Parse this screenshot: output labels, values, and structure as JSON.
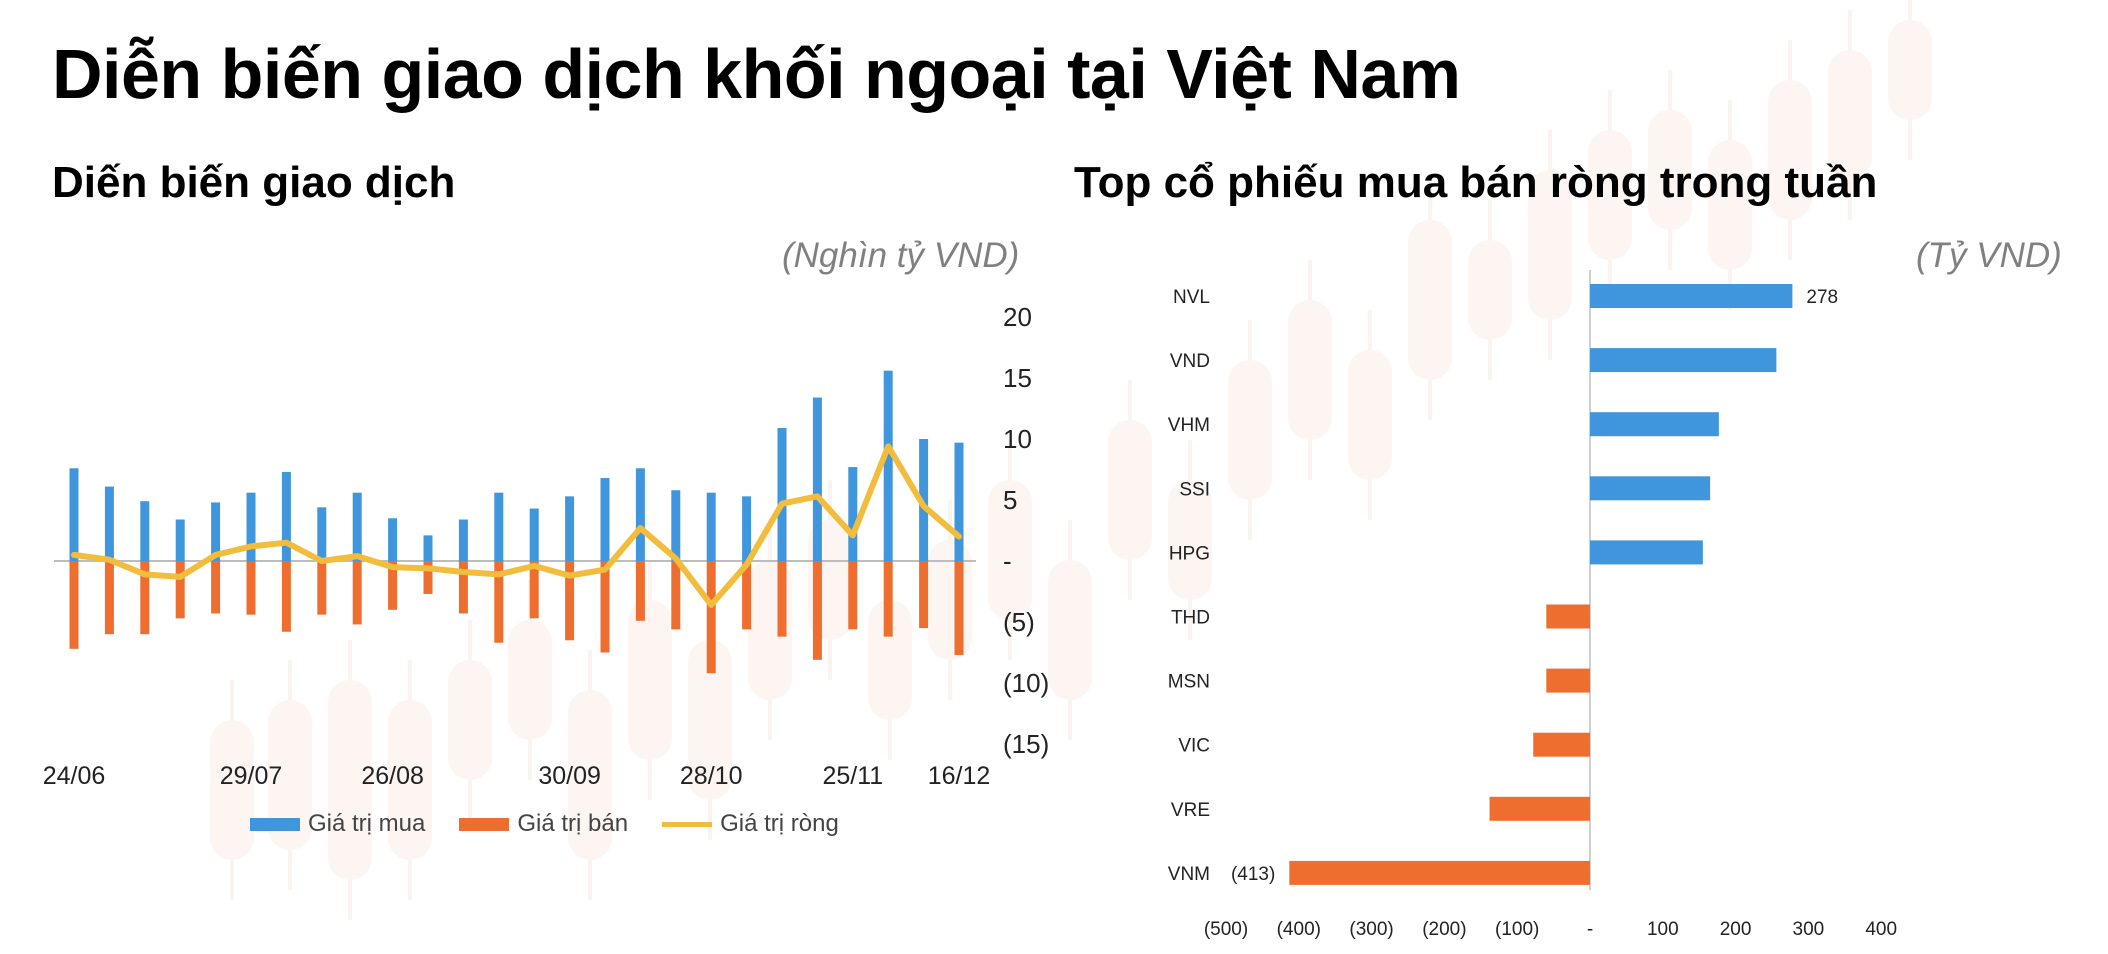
{
  "page": {
    "title": "Diễn biến giao dịch khối ngoại tại Việt Nam"
  },
  "left_panel": {
    "subtitle": "Diến biến giao dịch",
    "unit": "(Nghìn tỷ VND)"
  },
  "right_panel": {
    "subtitle": "Top cổ phiếu mua bán ròng trong tuần",
    "unit": "(Tỷ VND)"
  },
  "colors": {
    "buy": "#3f96dc",
    "sell": "#ee6e2f",
    "net": "#f2bd3d",
    "zero_line": "#bdbdbd",
    "axis_text": "#222222"
  },
  "chart_data": [
    {
      "type": "bar",
      "title": "Diến biến giao dịch",
      "ylabel": "(Nghìn tỷ VND)",
      "ylim": [
        -15,
        20
      ],
      "y_ticks": [
        20,
        15,
        10,
        5,
        0,
        -5,
        -10,
        -15
      ],
      "y_tick_labels": [
        "20",
        "15",
        "10",
        "5",
        "-",
        "(5)",
        "(10)",
        "(15)"
      ],
      "x_tick_labels": [
        {
          "index": 0,
          "label": "24/06"
        },
        {
          "index": 5,
          "label": "29/07"
        },
        {
          "index": 9,
          "label": "26/08"
        },
        {
          "index": 14,
          "label": "30/09"
        },
        {
          "index": 18,
          "label": "28/10"
        },
        {
          "index": 22,
          "label": "25/11"
        },
        {
          "index": 25,
          "label": "16/12"
        }
      ],
      "legend_position": "bottom",
      "grid": false,
      "series": [
        {
          "name": "Giá trị mua",
          "type": "bar",
          "values": [
            7.6,
            6.1,
            4.9,
            3.4,
            4.8,
            5.6,
            7.3,
            4.4,
            5.6,
            3.5,
            2.1,
            3.4,
            5.6,
            4.3,
            5.3,
            6.8,
            7.6,
            5.8,
            5.6,
            5.3,
            10.9,
            13.4,
            7.7,
            15.6,
            10.0,
            9.7
          ]
        },
        {
          "name": "Giá trị bán",
          "type": "bar",
          "values": [
            -7.2,
            -6.0,
            -6.0,
            -4.7,
            -4.3,
            -4.4,
            -5.8,
            -4.4,
            -5.2,
            -4.0,
            -2.7,
            -4.3,
            -6.7,
            -4.7,
            -6.5,
            -7.5,
            -4.9,
            -5.6,
            -9.2,
            -5.6,
            -6.2,
            -8.1,
            -5.6,
            -6.2,
            -5.5,
            -7.7
          ]
        },
        {
          "name": "Giá trị ròng",
          "type": "line",
          "values": [
            0.5,
            0.1,
            -1.1,
            -1.3,
            0.5,
            1.2,
            1.5,
            0.0,
            0.4,
            -0.5,
            -0.6,
            -0.9,
            -1.1,
            -0.4,
            -1.2,
            -0.7,
            2.7,
            0.2,
            -3.6,
            -0.3,
            4.7,
            5.3,
            2.1,
            9.4,
            4.5,
            2.0
          ]
        }
      ]
    },
    {
      "type": "bar",
      "orientation": "horizontal",
      "title": "Top cổ phiếu mua bán ròng trong tuần",
      "xlabel": "(Tỷ VND)",
      "xlim": [
        -500,
        400
      ],
      "x_ticks": [
        -500,
        -400,
        -300,
        -200,
        -100,
        0,
        100,
        200,
        300,
        400
      ],
      "x_tick_labels": [
        "(500)",
        "(400)",
        "(300)",
        "(200)",
        "(100)",
        "-",
        "100",
        "200",
        "300",
        "400"
      ],
      "categories": [
        "NVL",
        "VND",
        "VHM",
        "SSI",
        "HPG",
        "THD",
        "MSN",
        "VIC",
        "VRE",
        "VNM"
      ],
      "values": [
        278,
        256,
        177,
        165,
        155,
        -60,
        -60,
        -78,
        -138,
        -413
      ],
      "data_labels": [
        {
          "index": 0,
          "label": "278"
        },
        {
          "index": 9,
          "label": "(413)"
        }
      ]
    }
  ]
}
